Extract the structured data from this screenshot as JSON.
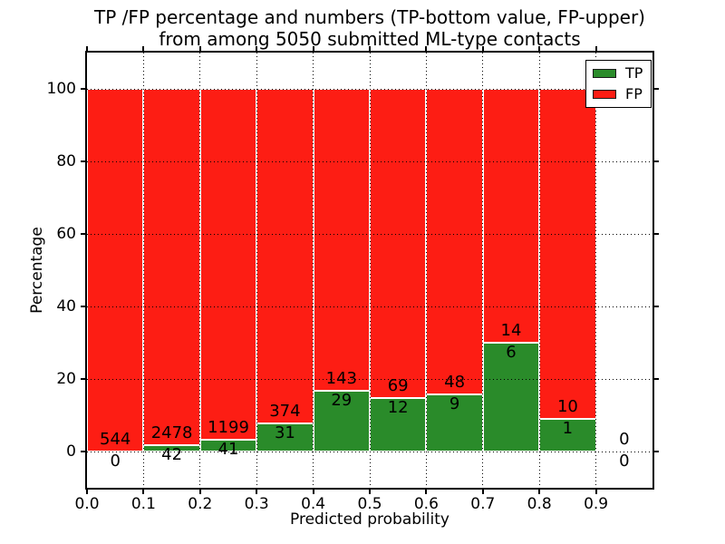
{
  "title": {
    "line1": "TP /FP percentage and numbers (TP-bottom value, FP-upper)",
    "line2": "from among 5050 submitted ML-type contacts"
  },
  "chart_data": {
    "type": "bar",
    "stacked": true,
    "title": "TP /FP percentage and numbers (TP-bottom value, FP-upper) from among 5050 submitted ML-type contacts",
    "xlabel": "Predicted probability",
    "ylabel": "Percentage",
    "total_contacts": 5050,
    "bin_edges": [
      0.0,
      0.1,
      0.2,
      0.3,
      0.4,
      0.5,
      0.6,
      0.7,
      0.8,
      0.9,
      1.0
    ],
    "series": [
      {
        "name": "TP",
        "color": "#2a8b2a",
        "counts": [
          0,
          42,
          41,
          31,
          29,
          12,
          9,
          6,
          1,
          0
        ]
      },
      {
        "name": "FP",
        "color": "#fd1d14",
        "counts": [
          544,
          2478,
          1199,
          374,
          143,
          69,
          48,
          14,
          10,
          0
        ]
      }
    ],
    "tp_percent": [
      0,
      1.67,
      3.31,
      7.65,
      16.86,
      14.81,
      15.79,
      30.0,
      9.09,
      0
    ],
    "bar_total_percent": 100,
    "bar_edge_color": "#ffffff",
    "xlim": [
      0.0,
      1.0
    ],
    "ylim": [
      -10,
      110
    ],
    "xticks": [
      {
        "value": 0.0,
        "label": "0.0"
      },
      {
        "value": 0.1,
        "label": "0.1"
      },
      {
        "value": 0.2,
        "label": "0.2"
      },
      {
        "value": 0.3,
        "label": "0.3"
      },
      {
        "value": 0.4,
        "label": "0.4"
      },
      {
        "value": 0.5,
        "label": "0.5"
      },
      {
        "value": 0.6,
        "label": "0.6"
      },
      {
        "value": 0.7,
        "label": "0.7"
      },
      {
        "value": 0.8,
        "label": "0.8"
      },
      {
        "value": 0.9,
        "label": "0.9"
      }
    ],
    "yticks": [
      {
        "value": 0,
        "label": "0"
      },
      {
        "value": 20,
        "label": "20"
      },
      {
        "value": 40,
        "label": "40"
      },
      {
        "value": 60,
        "label": "60"
      },
      {
        "value": 80,
        "label": "80"
      },
      {
        "value": 100,
        "label": "100"
      }
    ],
    "grid": {
      "style": "dotted",
      "color": "#000000"
    },
    "legend_position": "upper right",
    "legend": [
      {
        "label": "TP",
        "color": "#2a8b2a"
      },
      {
        "label": "FP",
        "color": "#fd1d14"
      }
    ]
  }
}
